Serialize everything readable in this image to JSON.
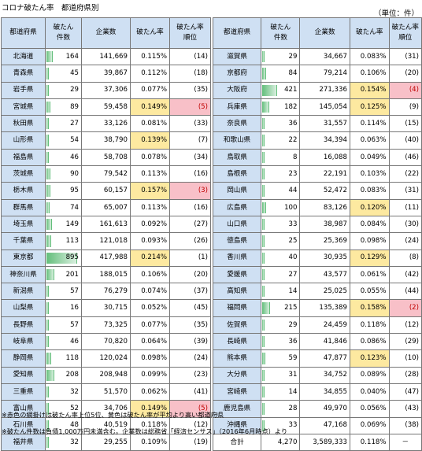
{
  "title": "コロナ破たん率　都道府県別",
  "unit": "（単位：件）",
  "headers": {
    "pref": "都道府県",
    "count_1": "破たん",
    "count_2": "件数",
    "companies": "企業数",
    "rate": "破たん率",
    "rank_1": "破たん率",
    "rank_2": "順位"
  },
  "left_rows": [
    {
      "pref": "北海道",
      "count": "164",
      "count_value": 164,
      "companies": "141,669",
      "rate": "0.115%",
      "rank": "(14)",
      "rate_hl": false,
      "rank_hl": false
    },
    {
      "pref": "青森県",
      "count": "45",
      "count_value": 45,
      "companies": "39,867",
      "rate": "0.112%",
      "rank": "(18)",
      "rate_hl": false,
      "rank_hl": false
    },
    {
      "pref": "岩手県",
      "count": "29",
      "count_value": 29,
      "companies": "37,306",
      "rate": "0.077%",
      "rank": "(35)",
      "rate_hl": false,
      "rank_hl": false
    },
    {
      "pref": "宮城県",
      "count": "89",
      "count_value": 89,
      "companies": "59,458",
      "rate": "0.149%",
      "rank": "(5)",
      "rate_hl": true,
      "rank_hl": true
    },
    {
      "pref": "秋田県",
      "count": "27",
      "count_value": 27,
      "companies": "33,126",
      "rate": "0.081%",
      "rank": "(33)",
      "rate_hl": false,
      "rank_hl": false
    },
    {
      "pref": "山形県",
      "count": "54",
      "count_value": 54,
      "companies": "38,790",
      "rate": "0.139%",
      "rank": "(7)",
      "rate_hl": true,
      "rank_hl": false
    },
    {
      "pref": "福島県",
      "count": "46",
      "count_value": 46,
      "companies": "58,708",
      "rate": "0.078%",
      "rank": "(34)",
      "rate_hl": false,
      "rank_hl": false
    },
    {
      "pref": "茨城県",
      "count": "90",
      "count_value": 90,
      "companies": "79,542",
      "rate": "0.113%",
      "rank": "(16)",
      "rate_hl": false,
      "rank_hl": false
    },
    {
      "pref": "栃木県",
      "count": "95",
      "count_value": 95,
      "companies": "60,157",
      "rate": "0.157%",
      "rank": "(3)",
      "rate_hl": true,
      "rank_hl": true
    },
    {
      "pref": "群馬県",
      "count": "74",
      "count_value": 74,
      "companies": "65,007",
      "rate": "0.113%",
      "rank": "(16)",
      "rate_hl": false,
      "rank_hl": false
    },
    {
      "pref": "埼玉県",
      "count": "149",
      "count_value": 149,
      "companies": "161,613",
      "rate": "0.092%",
      "rank": "(27)",
      "rate_hl": false,
      "rank_hl": false
    },
    {
      "pref": "千葉県",
      "count": "113",
      "count_value": 113,
      "companies": "121,018",
      "rate": "0.093%",
      "rank": "(26)",
      "rate_hl": false,
      "rank_hl": false
    },
    {
      "pref": "東京都",
      "count": "895",
      "count_value": 895,
      "companies": "417,988",
      "rate": "0.214%",
      "rank": "(1)",
      "rate_hl": true,
      "rank_hl": false
    },
    {
      "pref": "神奈川県",
      "count": "201",
      "count_value": 201,
      "companies": "188,015",
      "rate": "0.106%",
      "rank": "(20)",
      "rate_hl": false,
      "rank_hl": false
    },
    {
      "pref": "新潟県",
      "count": "57",
      "count_value": 57,
      "companies": "76,279",
      "rate": "0.074%",
      "rank": "(37)",
      "rate_hl": false,
      "rank_hl": false
    },
    {
      "pref": "山梨県",
      "count": "16",
      "count_value": 16,
      "companies": "30,715",
      "rate": "0.052%",
      "rank": "(45)",
      "rate_hl": false,
      "rank_hl": false
    },
    {
      "pref": "長野県",
      "count": "57",
      "count_value": 57,
      "companies": "73,325",
      "rate": "0.077%",
      "rank": "(35)",
      "rate_hl": false,
      "rank_hl": false
    },
    {
      "pref": "岐阜県",
      "count": "46",
      "count_value": 46,
      "companies": "70,820",
      "rate": "0.064%",
      "rank": "(39)",
      "rate_hl": false,
      "rank_hl": false
    },
    {
      "pref": "静岡県",
      "count": "118",
      "count_value": 118,
      "companies": "120,024",
      "rate": "0.098%",
      "rank": "(24)",
      "rate_hl": false,
      "rank_hl": false
    },
    {
      "pref": "愛知県",
      "count": "208",
      "count_value": 208,
      "companies": "208,948",
      "rate": "0.099%",
      "rank": "(23)",
      "rate_hl": false,
      "rank_hl": false
    },
    {
      "pref": "三重県",
      "count": "32",
      "count_value": 32,
      "companies": "51,570",
      "rate": "0.062%",
      "rank": "(41)",
      "rate_hl": false,
      "rank_hl": false
    },
    {
      "pref": "富山県",
      "count": "52",
      "count_value": 52,
      "companies": "34,706",
      "rate": "0.149%",
      "rank": "(5)",
      "rate_hl": true,
      "rank_hl": true
    },
    {
      "pref": "石川県",
      "count": "48",
      "count_value": 48,
      "companies": "40,519",
      "rate": "0.118%",
      "rank": "(12)",
      "rate_hl": false,
      "rank_hl": false
    },
    {
      "pref": "福井県",
      "count": "32",
      "count_value": 32,
      "companies": "29,255",
      "rate": "0.109%",
      "rank": "(19)",
      "rate_hl": false,
      "rank_hl": false
    }
  ],
  "right_rows": [
    {
      "pref": "滋賀県",
      "count": "29",
      "count_value": 29,
      "companies": "34,667",
      "rate": "0.083%",
      "rank": "(31)",
      "rate_hl": false,
      "rank_hl": false
    },
    {
      "pref": "京都府",
      "count": "84",
      "count_value": 84,
      "companies": "79,214",
      "rate": "0.106%",
      "rank": "(20)",
      "rate_hl": false,
      "rank_hl": false
    },
    {
      "pref": "大阪府",
      "count": "421",
      "count_value": 421,
      "companies": "271,336",
      "rate": "0.154%",
      "rank": "(4)",
      "rate_hl": true,
      "rank_hl": true
    },
    {
      "pref": "兵庫県",
      "count": "182",
      "count_value": 182,
      "companies": "145,054",
      "rate": "0.125%",
      "rank": "(9)",
      "rate_hl": true,
      "rank_hl": false
    },
    {
      "pref": "奈良県",
      "count": "36",
      "count_value": 36,
      "companies": "31,557",
      "rate": "0.114%",
      "rank": "(15)",
      "rate_hl": false,
      "rank_hl": false
    },
    {
      "pref": "和歌山県",
      "count": "22",
      "count_value": 22,
      "companies": "34,394",
      "rate": "0.063%",
      "rank": "(40)",
      "rate_hl": false,
      "rank_hl": false
    },
    {
      "pref": "鳥取県",
      "count": "8",
      "count_value": 8,
      "companies": "16,088",
      "rate": "0.049%",
      "rank": "(46)",
      "rate_hl": false,
      "rank_hl": false
    },
    {
      "pref": "島根県",
      "count": "23",
      "count_value": 23,
      "companies": "22,191",
      "rate": "0.103%",
      "rank": "(22)",
      "rate_hl": false,
      "rank_hl": false
    },
    {
      "pref": "岡山県",
      "count": "44",
      "count_value": 44,
      "companies": "52,472",
      "rate": "0.083%",
      "rank": "(31)",
      "rate_hl": false,
      "rank_hl": false
    },
    {
      "pref": "広島県",
      "count": "100",
      "count_value": 100,
      "companies": "83,126",
      "rate": "0.120%",
      "rank": "(11)",
      "rate_hl": true,
      "rank_hl": false
    },
    {
      "pref": "山口県",
      "count": "33",
      "count_value": 33,
      "companies": "38,987",
      "rate": "0.084%",
      "rank": "(30)",
      "rate_hl": false,
      "rank_hl": false
    },
    {
      "pref": "徳島県",
      "count": "25",
      "count_value": 25,
      "companies": "25,369",
      "rate": "0.098%",
      "rank": "(24)",
      "rate_hl": false,
      "rank_hl": false
    },
    {
      "pref": "香川県",
      "count": "40",
      "count_value": 40,
      "companies": "30,935",
      "rate": "0.129%",
      "rank": "(8)",
      "rate_hl": true,
      "rank_hl": false
    },
    {
      "pref": "愛媛県",
      "count": "27",
      "count_value": 27,
      "companies": "43,577",
      "rate": "0.061%",
      "rank": "(42)",
      "rate_hl": false,
      "rank_hl": false
    },
    {
      "pref": "高知県",
      "count": "14",
      "count_value": 14,
      "companies": "25,025",
      "rate": "0.055%",
      "rank": "(44)",
      "rate_hl": false,
      "rank_hl": false
    },
    {
      "pref": "福岡県",
      "count": "215",
      "count_value": 215,
      "companies": "135,389",
      "rate": "0.158%",
      "rank": "(2)",
      "rate_hl": true,
      "rank_hl": true
    },
    {
      "pref": "佐賀県",
      "count": "29",
      "count_value": 29,
      "companies": "24,459",
      "rate": "0.118%",
      "rank": "(12)",
      "rate_hl": false,
      "rank_hl": false
    },
    {
      "pref": "長崎県",
      "count": "36",
      "count_value": 36,
      "companies": "41,846",
      "rate": "0.086%",
      "rank": "(29)",
      "rate_hl": false,
      "rank_hl": false
    },
    {
      "pref": "熊本県",
      "count": "59",
      "count_value": 59,
      "companies": "47,877",
      "rate": "0.123%",
      "rank": "(10)",
      "rate_hl": true,
      "rank_hl": false
    },
    {
      "pref": "大分県",
      "count": "31",
      "count_value": 31,
      "companies": "34,752",
      "rate": "0.089%",
      "rank": "(28)",
      "rate_hl": false,
      "rank_hl": false
    },
    {
      "pref": "宮崎県",
      "count": "14",
      "count_value": 14,
      "companies": "34,855",
      "rate": "0.040%",
      "rank": "(47)",
      "rate_hl": false,
      "rank_hl": false
    },
    {
      "pref": "鹿児島県",
      "count": "28",
      "count_value": 28,
      "companies": "49,970",
      "rate": "0.056%",
      "rank": "(43)",
      "rate_hl": false,
      "rank_hl": false
    },
    {
      "pref": "沖縄県",
      "count": "33",
      "count_value": 33,
      "companies": "47,168",
      "rate": "0.069%",
      "rank": "(38)",
      "rate_hl": false,
      "rank_hl": false
    }
  ],
  "total": {
    "label": "合計",
    "count": "4,270",
    "companies": "3,589,333",
    "rate": "0.118%",
    "rank": "－"
  },
  "notes": [
    "※赤色の網掛けは破たん率上位5位、黄色は破たん率が平均より高い都道府県",
    "※破たん件数は負債1,000万円未満含む。企業数は総務省「経済センサス」（2016年6月時点）より"
  ],
  "colors": {
    "header_bg": "#cfe0f3",
    "bar": "#63be7b",
    "rate_highlight": "#fde9a0",
    "rank_highlight": "#f8c0c8",
    "rank_text": "#c00000"
  }
}
